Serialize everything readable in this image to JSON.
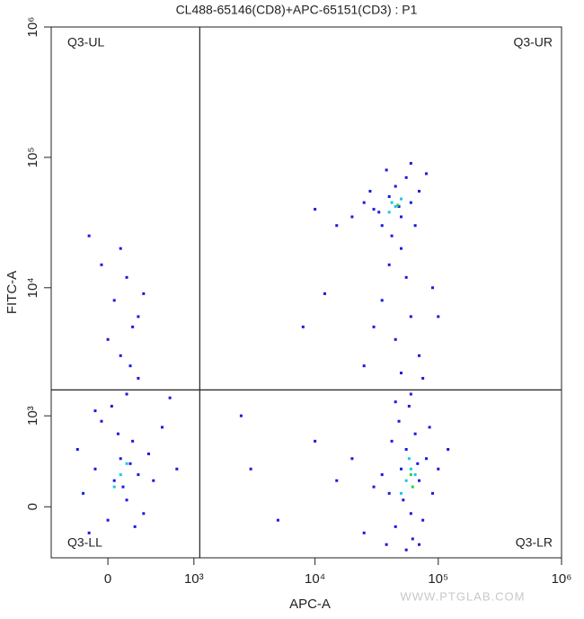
{
  "chart_data": {
    "type": "scatter",
    "title": "CL488-65146(CD8)+APC-65151(CD3) : P1",
    "x_label": "APC-A",
    "y_label": "FITC-A",
    "scale": "biexponential",
    "xlim": [
      -530,
      1000000
    ],
    "ylim": [
      -430,
      1000000
    ],
    "xticks": [
      0,
      {
        "value": 1000,
        "label": "10³"
      },
      {
        "value": 10000,
        "label": "10⁴"
      },
      {
        "value": 100000,
        "label": "10⁵"
      },
      {
        "value": 1000000,
        "label": "10⁶"
      }
    ],
    "yticks": [
      0,
      {
        "value": 1000,
        "label": "10³"
      },
      {
        "value": 10000,
        "label": "10⁴"
      },
      {
        "value": 100000,
        "label": "10⁵"
      },
      {
        "value": 1000000,
        "label": "10⁶"
      }
    ],
    "gate": {
      "x": 1125,
      "y": 1620
    },
    "quadrants": {
      "upper_left": "Q3-UL",
      "upper_right": "Q3-UR",
      "lower_left": "Q3-LL",
      "lower_right": "Q3-LR"
    },
    "watermark": "WWW.PTGLAB.COM",
    "series": [
      {
        "color": "#1a1ae0",
        "x": [
          -200,
          -100,
          0,
          50,
          100,
          150,
          200,
          250,
          300,
          -250,
          -150,
          80,
          120,
          180,
          220,
          350,
          400,
          500,
          -50,
          30,
          150,
          -100,
          250,
          100,
          200,
          50,
          150,
          -50,
          100,
          250,
          300,
          0,
          -150,
          180,
          600,
          700,
          30000,
          40000,
          50000,
          60000,
          45000,
          35000,
          55000,
          25000,
          70000,
          42000,
          38000,
          65000,
          80000,
          28000,
          50000,
          20000,
          60000,
          48000,
          33000,
          15000,
          10000,
          40000,
          55000,
          35000,
          60000,
          45000,
          70000,
          30000,
          8000,
          90000,
          25000,
          50000,
          75000,
          12000,
          100000,
          40000,
          50000,
          60000,
          70000,
          55000,
          45000,
          65000,
          80000,
          35000,
          90000,
          48000,
          58000,
          62000,
          75000,
          42000,
          30000,
          100000,
          52000,
          68000,
          38000,
          85000,
          20000,
          15000,
          10000,
          25000,
          60000,
          45000,
          3000,
          5000,
          2500,
          120000,
          70000,
          55000
        ],
        "y": [
          100,
          300,
          -100,
          200,
          400,
          50,
          600,
          250,
          -50,
          500,
          -200,
          700,
          150,
          350,
          -150,
          450,
          200,
          800,
          900,
          1200,
          1500,
          1100,
          2000,
          3000,
          5000,
          8000,
          12000,
          15000,
          20000,
          6000,
          9000,
          4000,
          25000,
          2500,
          1400,
          300,
          40000,
          50000,
          35000,
          45000,
          60000,
          30000,
          70000,
          45000,
          55000,
          25000,
          80000,
          30000,
          75000,
          55000,
          20000,
          35000,
          90000,
          42000,
          38000,
          30000,
          40000,
          15000,
          12000,
          8000,
          6000,
          4000,
          3000,
          5000,
          5000,
          10000,
          2500,
          2200,
          2000,
          9000,
          6000,
          100,
          300,
          -50,
          200,
          500,
          -150,
          700,
          400,
          250,
          100,
          900,
          1200,
          -250,
          -100,
          600,
          150,
          300,
          50,
          350,
          -300,
          800,
          400,
          200,
          600,
          -200,
          1500,
          1300,
          300,
          -100,
          1000,
          500,
          -300,
          -350
        ]
      },
      {
        "color": "#18c8e8",
        "x": [
          45000,
          40000,
          50000,
          42000,
          55000,
          60000,
          50000,
          65000,
          58000,
          100,
          50,
          150
        ],
        "y": [
          42000,
          38000,
          48000,
          45000,
          200,
          300,
          100,
          250,
          400,
          250,
          150,
          350
        ]
      },
      {
        "color": "#30d040",
        "x": [
          47000,
          60000,
          62000
        ],
        "y": [
          43000,
          250,
          150
        ]
      }
    ]
  }
}
